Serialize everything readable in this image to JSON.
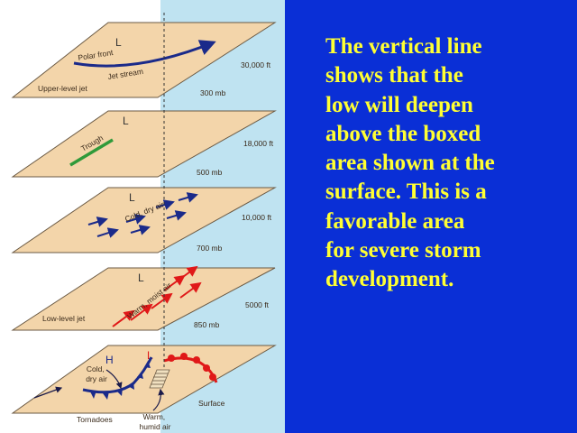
{
  "caption": "The vertical line\nshows that the\nlow will deepen\nabove the boxed\narea shown at the\nsurface. This is a\nfavorable area\nfor severe storm\ndevelopment.",
  "levels": {
    "upper": {
      "height": "30,000 ft",
      "pressure": "300 mb",
      "name": "Upper-level jet",
      "low": "L",
      "front": "Polar front",
      "jet": "Jet stream"
    },
    "l500": {
      "height": "18,000 ft",
      "pressure": "500 mb",
      "low": "L",
      "trough": "Trough"
    },
    "l700": {
      "height": "10,000 ft",
      "pressure": "700 mb",
      "low": "L",
      "air": "Cold, dry air"
    },
    "l850": {
      "height": "5000 ft",
      "pressure": "850 mb",
      "name": "Low-level jet",
      "low": "L",
      "air": "Warm, moist air"
    },
    "surface": {
      "name": "Surface",
      "high": "H",
      "low": "L",
      "cold_air": "Cold,\ndry air",
      "tornadoes": "Tornadoes",
      "warm_air": "Warm,\nhumid air"
    }
  },
  "colors": {
    "background": "#0a2fd6",
    "caption": "#ffff33",
    "plane": "#f3d5aa",
    "sky": "#bfe3f1",
    "cold": "#1a2a8a",
    "warm": "#e01818",
    "trough": "#2f9a3a"
  }
}
